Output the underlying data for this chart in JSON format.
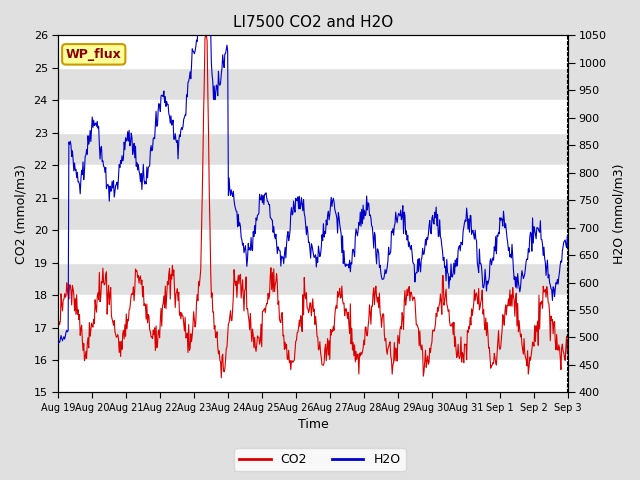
{
  "title": "LI7500 CO2 and H2O",
  "xlabel": "Time",
  "ylabel_left": "CO2 (mmol/m3)",
  "ylabel_right": "H2O (mmol/m3)",
  "co2_ylim": [
    15.0,
    26.0
  ],
  "h2o_ylim": [
    400,
    1050
  ],
  "co2_yticks": [
    15.0,
    16.0,
    17.0,
    18.0,
    19.0,
    20.0,
    21.0,
    22.0,
    23.0,
    24.0,
    25.0,
    26.0
  ],
  "h2o_yticks": [
    400,
    450,
    500,
    550,
    600,
    650,
    700,
    750,
    800,
    850,
    900,
    950,
    1000,
    1050
  ],
  "co2_color": "#dd0000",
  "h2o_color": "#0000cc",
  "title_fontsize": 11,
  "label_fontsize": 9,
  "tick_fontsize": 8,
  "legend_fontsize": 9,
  "bg_color": "#e0e0e0",
  "plot_bg_color": "#e8e8e8",
  "band_color_light": "#dcdcdc",
  "band_color_dark": "#c8c8c8",
  "annotation_text": "WP_flux",
  "annotation_bg": "#ffff99",
  "annotation_border": "#cc9900",
  "xtick_labels": [
    "Aug 19",
    "Aug 20",
    "Aug 21",
    "Aug 22",
    "Aug 23",
    "Aug 24",
    "Aug 25",
    "Aug 26",
    "Aug 27",
    "Aug 28",
    "Aug 29",
    "Aug 30",
    "Aug 31",
    "Sep 1",
    "Sep 2",
    "Sep 3"
  ],
  "n_days": 15,
  "n_points": 720
}
